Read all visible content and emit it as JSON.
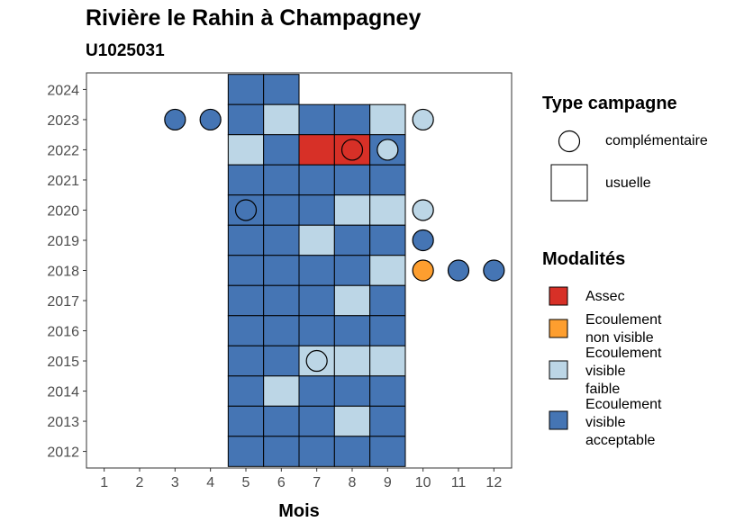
{
  "chart_data": {
    "type": "heatmap",
    "title": "Rivière le Rahin à Champagney",
    "subtitle": "U1025031",
    "xlabel": "Mois",
    "ylabel": "",
    "x_ticks": [
      1,
      2,
      3,
      4,
      5,
      6,
      7,
      8,
      9,
      10,
      11,
      12
    ],
    "y_ticks": [
      2012,
      2013,
      2014,
      2015,
      2016,
      2017,
      2018,
      2019,
      2020,
      2021,
      2022,
      2023,
      2024
    ],
    "xlim": [
      0.5,
      12.5
    ],
    "ylim": [
      2011.45,
      2024.55
    ],
    "grid": false,
    "modalites_legend": {
      "title": "Modalités",
      "items": [
        {
          "key": "assec",
          "label": "Assec",
          "color": "#d73027"
        },
        {
          "key": "non_visible",
          "label": "Ecoulement\nnon visible",
          "color": "#fd9e2f"
        },
        {
          "key": "faible",
          "label": "Ecoulement\nvisible\nfaible",
          "color": "#bcd6e6"
        },
        {
          "key": "acceptable",
          "label": "Ecoulement\nvisible\nacceptable",
          "color": "#4575b4"
        }
      ]
    },
    "type_legend": {
      "title": "Type campagne",
      "items": [
        {
          "key": "complementaire",
          "label": "complémentaire",
          "shape": "circle"
        },
        {
          "key": "usuelle",
          "label": "usuelle",
          "shape": "square"
        }
      ]
    },
    "usuelle": [
      {
        "year": 2024,
        "months": [
          "acceptable",
          "acceptable",
          null,
          null,
          null
        ]
      },
      {
        "year": 2023,
        "months": [
          "acceptable",
          "faible",
          "acceptable",
          "acceptable",
          "faible"
        ]
      },
      {
        "year": 2022,
        "months": [
          "faible",
          "acceptable",
          "assec",
          "assec",
          "acceptable"
        ]
      },
      {
        "year": 2021,
        "months": [
          "acceptable",
          "acceptable",
          "acceptable",
          "acceptable",
          "acceptable"
        ]
      },
      {
        "year": 2020,
        "months": [
          "acceptable",
          "acceptable",
          "acceptable",
          "faible",
          "faible"
        ]
      },
      {
        "year": 2019,
        "months": [
          "acceptable",
          "acceptable",
          "faible",
          "acceptable",
          "acceptable"
        ]
      },
      {
        "year": 2018,
        "months": [
          "acceptable",
          "acceptable",
          "acceptable",
          "acceptable",
          "faible"
        ]
      },
      {
        "year": 2017,
        "months": [
          "acceptable",
          "acceptable",
          "acceptable",
          "faible",
          "acceptable"
        ]
      },
      {
        "year": 2016,
        "months": [
          "acceptable",
          "acceptable",
          "acceptable",
          "acceptable",
          "acceptable"
        ]
      },
      {
        "year": 2015,
        "months": [
          "acceptable",
          "acceptable",
          "faible",
          "faible",
          "faible"
        ]
      },
      {
        "year": 2014,
        "months": [
          "acceptable",
          "faible",
          "acceptable",
          "acceptable",
          "acceptable"
        ]
      },
      {
        "year": 2013,
        "months": [
          "acceptable",
          "acceptable",
          "acceptable",
          "faible",
          "acceptable"
        ]
      },
      {
        "year": 2012,
        "months": [
          "acceptable",
          "acceptable",
          "acceptable",
          "acceptable",
          "acceptable"
        ]
      }
    ],
    "usuelle_months": [
      5,
      6,
      7,
      8,
      9
    ],
    "complementaire": [
      {
        "year": 2023,
        "month": 3,
        "modalite": "acceptable"
      },
      {
        "year": 2023,
        "month": 4,
        "modalite": "acceptable"
      },
      {
        "year": 2023,
        "month": 10,
        "modalite": "faible"
      },
      {
        "year": 2022,
        "month": 8,
        "modalite": "assec"
      },
      {
        "year": 2022,
        "month": 9,
        "modalite": "faible"
      },
      {
        "year": 2020,
        "month": 5,
        "modalite": "acceptable"
      },
      {
        "year": 2020,
        "month": 10,
        "modalite": "faible"
      },
      {
        "year": 2019,
        "month": 10,
        "modalite": "acceptable"
      },
      {
        "year": 2018,
        "month": 10,
        "modalite": "non_visible"
      },
      {
        "year": 2018,
        "month": 11,
        "modalite": "acceptable"
      },
      {
        "year": 2018,
        "month": 12,
        "modalite": "acceptable"
      },
      {
        "year": 2015,
        "month": 7,
        "modalite": "faible"
      }
    ]
  }
}
